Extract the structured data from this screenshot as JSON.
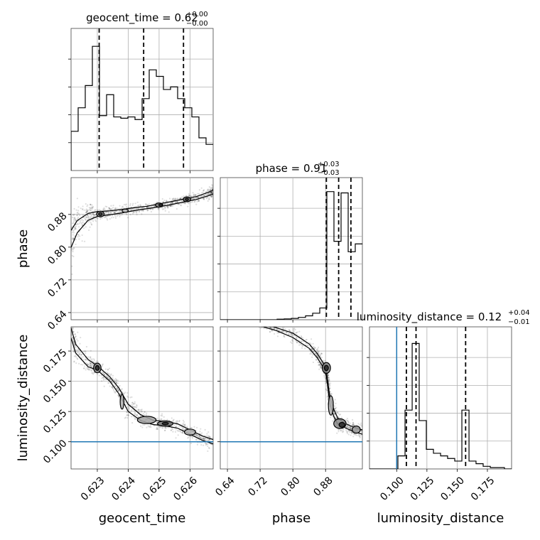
{
  "chart_data": {
    "type": "corner",
    "parameters": [
      "geocent_time",
      "phase",
      "luminosity_distance"
    ],
    "truth": {
      "luminosity_distance": 0.1,
      "color": "#1f77b4"
    },
    "titles": [
      {
        "param": "geocent_time",
        "name": "geocent_time",
        "median": "0.62",
        "plus": "+0.00",
        "minus": "−0.00"
      },
      {
        "param": "phase",
        "name": "phase",
        "median": "0.91",
        "plus": "+0.03",
        "minus": "−0.03"
      },
      {
        "param": "luminosity_distance",
        "name": "luminosity_distance",
        "median": "0.12",
        "plus": "+0.04",
        "minus": "−0.01"
      }
    ],
    "axes": {
      "geocent_time": {
        "range": [
          0.62215,
          0.62675
        ],
        "ticks": [
          0.623,
          0.624,
          0.625,
          0.626
        ],
        "tick_labels": [
          "0.623",
          "0.624",
          "0.625",
          "0.626"
        ]
      },
      "phase": {
        "range": [
          0.6225,
          0.97
        ],
        "ticks": [
          0.64,
          0.72,
          0.8,
          0.88
        ],
        "tick_labels": [
          "0.64",
          "0.72",
          "0.80",
          "0.88"
        ]
      },
      "luminosity_distance": {
        "range": [
          0.0775,
          0.195
        ],
        "ticks": [
          0.1,
          0.125,
          0.15,
          0.175
        ],
        "tick_labels": [
          "0.100",
          "0.125",
          "0.150",
          "0.175"
        ]
      }
    },
    "histograms": {
      "geocent_time": {
        "edges": [
          0.62215,
          0.62238,
          0.62261,
          0.62284,
          0.62307,
          0.6233,
          0.62353,
          0.62376,
          0.62399,
          0.62422,
          0.62445,
          0.62468,
          0.62491,
          0.62514,
          0.62537,
          0.6256,
          0.62583,
          0.62606,
          0.62629,
          0.62652,
          0.62675
        ],
        "counts": [
          0.3,
          0.48,
          0.65,
          0.95,
          0.42,
          0.58,
          0.41,
          0.4,
          0.41,
          0.39,
          0.55,
          0.77,
          0.72,
          0.62,
          0.64,
          0.55,
          0.48,
          0.41,
          0.25,
          0.2
        ],
        "ymax": 1.0,
        "quantiles": [
          0.62306,
          0.6245,
          0.62579
        ]
      },
      "phase": {
        "edges": [
          0.6225,
          0.6399,
          0.6573,
          0.6746,
          0.692,
          0.7094,
          0.7268,
          0.7441,
          0.7615,
          0.7789,
          0.7963,
          0.8136,
          0.831,
          0.8484,
          0.8658,
          0.8831,
          0.9005,
          0.9179,
          0.9353,
          0.9526,
          0.97
        ],
        "counts": [
          0.0,
          0.0,
          0.0,
          0.0,
          0.0,
          0.0,
          0.0,
          0.0,
          0.004,
          0.006,
          0.01,
          0.018,
          0.03,
          0.05,
          0.09,
          0.98,
          0.6,
          0.97,
          0.52,
          0.58
        ],
        "ymax": 1.0,
        "quantiles": [
          0.882,
          0.912,
          0.942
        ]
      },
      "luminosity_distance": {
        "edges": [
          0.0775,
          0.0834,
          0.0893,
          0.0951,
          0.101,
          0.1069,
          0.1128,
          0.1186,
          0.1245,
          0.1304,
          0.1363,
          0.1421,
          0.148,
          0.1539,
          0.1598,
          0.1656,
          0.1715,
          0.1774,
          0.1833,
          0.1891,
          0.195
        ],
        "counts": [
          0.0,
          0.0,
          0.0,
          0.0,
          0.1,
          0.45,
          0.96,
          0.37,
          0.15,
          0.12,
          0.1,
          0.08,
          0.06,
          0.45,
          0.06,
          0.04,
          0.02,
          0.01,
          0.01,
          0.0
        ],
        "ymax": 1.0,
        "quantiles": [
          0.108,
          0.116,
          0.157
        ]
      }
    },
    "pairs": [
      {
        "x": "geocent_time",
        "y": "phase",
        "ridge": [
          [
            0.62215,
            0.82
          ],
          [
            0.62235,
            0.85
          ],
          [
            0.6227,
            0.874
          ],
          [
            0.623,
            0.881
          ],
          [
            0.6234,
            0.884
          ],
          [
            0.6238,
            0.888
          ],
          [
            0.6242,
            0.893
          ],
          [
            0.6246,
            0.897
          ],
          [
            0.625,
            0.902
          ],
          [
            0.6254,
            0.908
          ],
          [
            0.6258,
            0.914
          ],
          [
            0.6262,
            0.92
          ],
          [
            0.6266,
            0.93
          ],
          [
            0.62675,
            0.935
          ]
        ],
        "ridge_widths": [
          0.035,
          0.025,
          0.014,
          0.01,
          0.008,
          0.007,
          0.006,
          0.005,
          0.006,
          0.006,
          0.006,
          0.006,
          0.007,
          0.008
        ],
        "contours": [
          {
            "cx": 0.6231,
            "cy": 0.881,
            "rx": 0.00012,
            "ry": 0.007,
            "shade": 0.45
          },
          {
            "cx": 0.6231,
            "cy": 0.881,
            "rx": 6e-05,
            "ry": 0.0035,
            "shade": 0.8
          },
          {
            "cx": 0.6239,
            "cy": 0.889,
            "rx": 0.0001,
            "ry": 0.004,
            "shade": 0.3
          },
          {
            "cx": 0.625,
            "cy": 0.903,
            "rx": 0.00012,
            "ry": 0.005,
            "shade": 0.5
          },
          {
            "cx": 0.62505,
            "cy": 0.903,
            "rx": 6e-05,
            "ry": 0.0025,
            "shade": 0.75
          },
          {
            "cx": 0.6259,
            "cy": 0.917,
            "rx": 0.00012,
            "ry": 0.006,
            "shade": 0.55
          },
          {
            "cx": 0.6259,
            "cy": 0.917,
            "rx": 5e-05,
            "ry": 0.003,
            "shade": 0.8
          }
        ]
      },
      {
        "x": "geocent_time",
        "y": "luminosity_distance",
        "ridge": [
          [
            0.62215,
            0.19
          ],
          [
            0.6223,
            0.177
          ],
          [
            0.6227,
            0.165
          ],
          [
            0.623,
            0.161
          ],
          [
            0.6234,
            0.152
          ],
          [
            0.6237,
            0.142
          ],
          [
            0.624,
            0.128
          ],
          [
            0.6244,
            0.12
          ],
          [
            0.6248,
            0.116
          ],
          [
            0.6252,
            0.115
          ],
          [
            0.6256,
            0.113
          ],
          [
            0.626,
            0.108
          ],
          [
            0.6264,
            0.103
          ],
          [
            0.62675,
            0.1
          ]
        ],
        "ridge_widths": [
          0.007,
          0.006,
          0.005,
          0.003,
          0.003,
          0.004,
          0.005,
          0.004,
          0.003,
          0.003,
          0.003,
          0.003,
          0.003,
          0.003
        ],
        "contours": [
          {
            "cx": 0.623,
            "cy": 0.161,
            "rx": 0.00012,
            "ry": 0.004,
            "shade": 0.5
          },
          {
            "cx": 0.623,
            "cy": 0.161,
            "rx": 6e-05,
            "ry": 0.002,
            "shade": 0.85
          },
          {
            "cx": 0.6238,
            "cy": 0.133,
            "rx": 6e-05,
            "ry": 0.006,
            "shade": 0.3
          },
          {
            "cx": 0.6246,
            "cy": 0.118,
            "rx": 0.0003,
            "ry": 0.003,
            "shade": 0.35
          },
          {
            "cx": 0.6252,
            "cy": 0.115,
            "rx": 0.00025,
            "ry": 0.0022,
            "shade": 0.55
          },
          {
            "cx": 0.6252,
            "cy": 0.115,
            "rx": 0.0001,
            "ry": 0.001,
            "shade": 0.85
          },
          {
            "cx": 0.626,
            "cy": 0.108,
            "rx": 0.00018,
            "ry": 0.0025,
            "shade": 0.3
          }
        ]
      },
      {
        "x": "phase",
        "y": "luminosity_distance",
        "ridge": [
          [
            0.72,
            0.197
          ],
          [
            0.76,
            0.193
          ],
          [
            0.8,
            0.188
          ],
          [
            0.84,
            0.179
          ],
          [
            0.86,
            0.171
          ],
          [
            0.875,
            0.163
          ],
          [
            0.882,
            0.156
          ],
          [
            0.886,
            0.146
          ],
          [
            0.89,
            0.135
          ],
          [
            0.9,
            0.124
          ],
          [
            0.91,
            0.117
          ],
          [
            0.93,
            0.113
          ],
          [
            0.95,
            0.11
          ],
          [
            0.97,
            0.108
          ]
        ],
        "ridge_widths": [
          0.002,
          0.002,
          0.003,
          0.003,
          0.003,
          0.003,
          0.003,
          0.004,
          0.005,
          0.005,
          0.004,
          0.003,
          0.003,
          0.003
        ],
        "contours": [
          {
            "cx": 0.882,
            "cy": 0.161,
            "rx": 0.01,
            "ry": 0.0045,
            "shade": 0.5
          },
          {
            "cx": 0.882,
            "cy": 0.161,
            "rx": 0.005,
            "ry": 0.0022,
            "shade": 0.85
          },
          {
            "cx": 0.893,
            "cy": 0.13,
            "rx": 0.006,
            "ry": 0.008,
            "shade": 0.3
          },
          {
            "cx": 0.915,
            "cy": 0.115,
            "rx": 0.015,
            "ry": 0.004,
            "shade": 0.45
          },
          {
            "cx": 0.92,
            "cy": 0.114,
            "rx": 0.007,
            "ry": 0.002,
            "shade": 0.85
          },
          {
            "cx": 0.955,
            "cy": 0.11,
            "rx": 0.01,
            "ry": 0.003,
            "shade": 0.4
          }
        ]
      }
    ]
  }
}
